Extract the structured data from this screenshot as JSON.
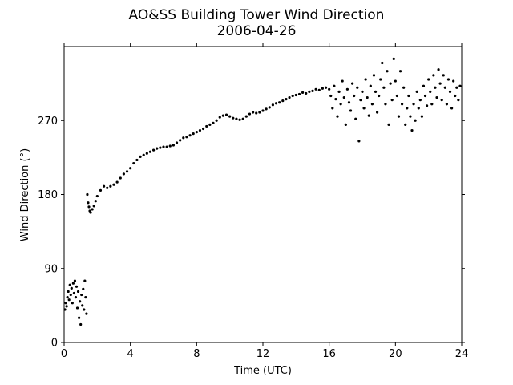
{
  "chart_data": {
    "type": "scatter",
    "title": "AO&SS Building Tower Wind Direction",
    "subtitle": "2006-04-26",
    "xlabel": "Time (UTC)",
    "ylabel": "Wind Direction (°)",
    "xlim": [
      0,
      24
    ],
    "ylim": [
      0,
      360
    ],
    "xticks": [
      0,
      4,
      8,
      12,
      16,
      20,
      24
    ],
    "yticks": [
      0,
      90,
      180,
      270
    ],
    "grid": false,
    "marker_color": "#000000",
    "series": [
      {
        "points": [
          [
            0.05,
            40
          ],
          [
            0.1,
            48
          ],
          [
            0.15,
            44
          ],
          [
            0.2,
            55
          ],
          [
            0.25,
            62
          ],
          [
            0.3,
            52
          ],
          [
            0.35,
            70
          ],
          [
            0.4,
            58
          ],
          [
            0.45,
            66
          ],
          [
            0.5,
            48
          ],
          [
            0.55,
            72
          ],
          [
            0.6,
            60
          ],
          [
            0.65,
            75
          ],
          [
            0.7,
            55
          ],
          [
            0.75,
            68
          ],
          [
            0.8,
            42
          ],
          [
            0.85,
            62
          ],
          [
            0.9,
            30
          ],
          [
            0.95,
            50
          ],
          [
            1.0,
            22
          ],
          [
            1.05,
            58
          ],
          [
            1.1,
            45
          ],
          [
            1.15,
            65
          ],
          [
            1.2,
            40
          ],
          [
            1.25,
            75
          ],
          [
            1.3,
            55
          ],
          [
            1.35,
            35
          ],
          [
            1.4,
            180
          ],
          [
            1.45,
            170
          ],
          [
            1.5,
            165
          ],
          [
            1.55,
            160
          ],
          [
            1.6,
            158
          ],
          [
            1.7,
            162
          ],
          [
            1.8,
            166
          ],
          [
            1.9,
            172
          ],
          [
            2.0,
            178
          ],
          [
            2.2,
            185
          ],
          [
            2.4,
            190
          ],
          [
            2.6,
            188
          ],
          [
            2.8,
            190
          ],
          [
            3.0,
            192
          ],
          [
            3.2,
            195
          ],
          [
            3.4,
            200
          ],
          [
            3.6,
            205
          ],
          [
            3.8,
            208
          ],
          [
            4.0,
            212
          ],
          [
            4.2,
            218
          ],
          [
            4.4,
            222
          ],
          [
            4.6,
            226
          ],
          [
            4.8,
            228
          ],
          [
            5.0,
            230
          ],
          [
            5.2,
            232
          ],
          [
            5.4,
            234
          ],
          [
            5.6,
            236
          ],
          [
            5.8,
            237
          ],
          [
            6.0,
            238
          ],
          [
            6.2,
            238
          ],
          [
            6.4,
            239
          ],
          [
            6.6,
            240
          ],
          [
            6.8,
            243
          ],
          [
            7.0,
            246
          ],
          [
            7.2,
            249
          ],
          [
            7.4,
            250
          ],
          [
            7.6,
            252
          ],
          [
            7.8,
            254
          ],
          [
            8.0,
            256
          ],
          [
            8.2,
            258
          ],
          [
            8.4,
            260
          ],
          [
            8.6,
            263
          ],
          [
            8.8,
            265
          ],
          [
            9.0,
            267
          ],
          [
            9.2,
            270
          ],
          [
            9.4,
            274
          ],
          [
            9.6,
            276
          ],
          [
            9.8,
            277
          ],
          [
            10.0,
            275
          ],
          [
            10.2,
            273
          ],
          [
            10.4,
            272
          ],
          [
            10.6,
            271
          ],
          [
            10.8,
            272
          ],
          [
            11.0,
            275
          ],
          [
            11.2,
            278
          ],
          [
            11.4,
            280
          ],
          [
            11.6,
            279
          ],
          [
            11.8,
            280
          ],
          [
            12.0,
            282
          ],
          [
            12.2,
            284
          ],
          [
            12.4,
            286
          ],
          [
            12.6,
            289
          ],
          [
            12.8,
            291
          ],
          [
            13.0,
            292
          ],
          [
            13.2,
            294
          ],
          [
            13.4,
            296
          ],
          [
            13.6,
            298
          ],
          [
            13.8,
            300
          ],
          [
            14.0,
            301
          ],
          [
            14.2,
            302
          ],
          [
            14.4,
            304
          ],
          [
            14.6,
            303
          ],
          [
            14.8,
            305
          ],
          [
            15.0,
            306
          ],
          [
            15.2,
            308
          ],
          [
            15.4,
            307
          ],
          [
            15.6,
            309
          ],
          [
            15.8,
            310
          ],
          [
            16.0,
            308
          ],
          [
            16.1,
            300
          ],
          [
            16.2,
            285
          ],
          [
            16.3,
            312
          ],
          [
            16.4,
            296
          ],
          [
            16.5,
            275
          ],
          [
            16.6,
            305
          ],
          [
            16.7,
            290
          ],
          [
            16.8,
            318
          ],
          [
            16.9,
            298
          ],
          [
            17.0,
            265
          ],
          [
            17.1,
            308
          ],
          [
            17.2,
            292
          ],
          [
            17.3,
            282
          ],
          [
            17.4,
            315
          ],
          [
            17.5,
            300
          ],
          [
            17.6,
            272
          ],
          [
            17.7,
            310
          ],
          [
            17.8,
            245
          ],
          [
            17.9,
            295
          ],
          [
            18.0,
            305
          ],
          [
            18.1,
            285
          ],
          [
            18.2,
            320
          ],
          [
            18.3,
            298
          ],
          [
            18.4,
            276
          ],
          [
            18.5,
            312
          ],
          [
            18.6,
            290
          ],
          [
            18.7,
            325
          ],
          [
            18.8,
            305
          ],
          [
            18.9,
            280
          ],
          [
            19.0,
            300
          ],
          [
            19.1,
            320
          ],
          [
            19.2,
            340
          ],
          [
            19.3,
            310
          ],
          [
            19.4,
            290
          ],
          [
            19.5,
            330
          ],
          [
            19.6,
            265
          ],
          [
            19.7,
            315
          ],
          [
            19.8,
            295
          ],
          [
            19.9,
            345
          ],
          [
            20.0,
            318
          ],
          [
            20.1,
            300
          ],
          [
            20.2,
            275
          ],
          [
            20.3,
            330
          ],
          [
            20.4,
            290
          ],
          [
            20.5,
            310
          ],
          [
            20.6,
            265
          ],
          [
            20.7,
            285
          ],
          [
            20.8,
            300
          ],
          [
            20.9,
            275
          ],
          [
            21.0,
            258
          ],
          [
            21.1,
            290
          ],
          [
            21.2,
            270
          ],
          [
            21.3,
            305
          ],
          [
            21.4,
            285
          ],
          [
            21.5,
            295
          ],
          [
            21.6,
            275
          ],
          [
            21.7,
            312
          ],
          [
            21.8,
            300
          ],
          [
            21.9,
            288
          ],
          [
            22.0,
            320
          ],
          [
            22.1,
            305
          ],
          [
            22.2,
            290
          ],
          [
            22.3,
            325
          ],
          [
            22.4,
            310
          ],
          [
            22.5,
            298
          ],
          [
            22.6,
            332
          ],
          [
            22.7,
            315
          ],
          [
            22.8,
            295
          ],
          [
            22.9,
            325
          ],
          [
            23.0,
            310
          ],
          [
            23.1,
            290
          ],
          [
            23.2,
            320
          ],
          [
            23.3,
            305
          ],
          [
            23.4,
            285
          ],
          [
            23.5,
            318
          ],
          [
            23.6,
            300
          ],
          [
            23.7,
            310
          ],
          [
            23.8,
            295
          ],
          [
            23.9,
            312
          ]
        ]
      }
    ]
  }
}
